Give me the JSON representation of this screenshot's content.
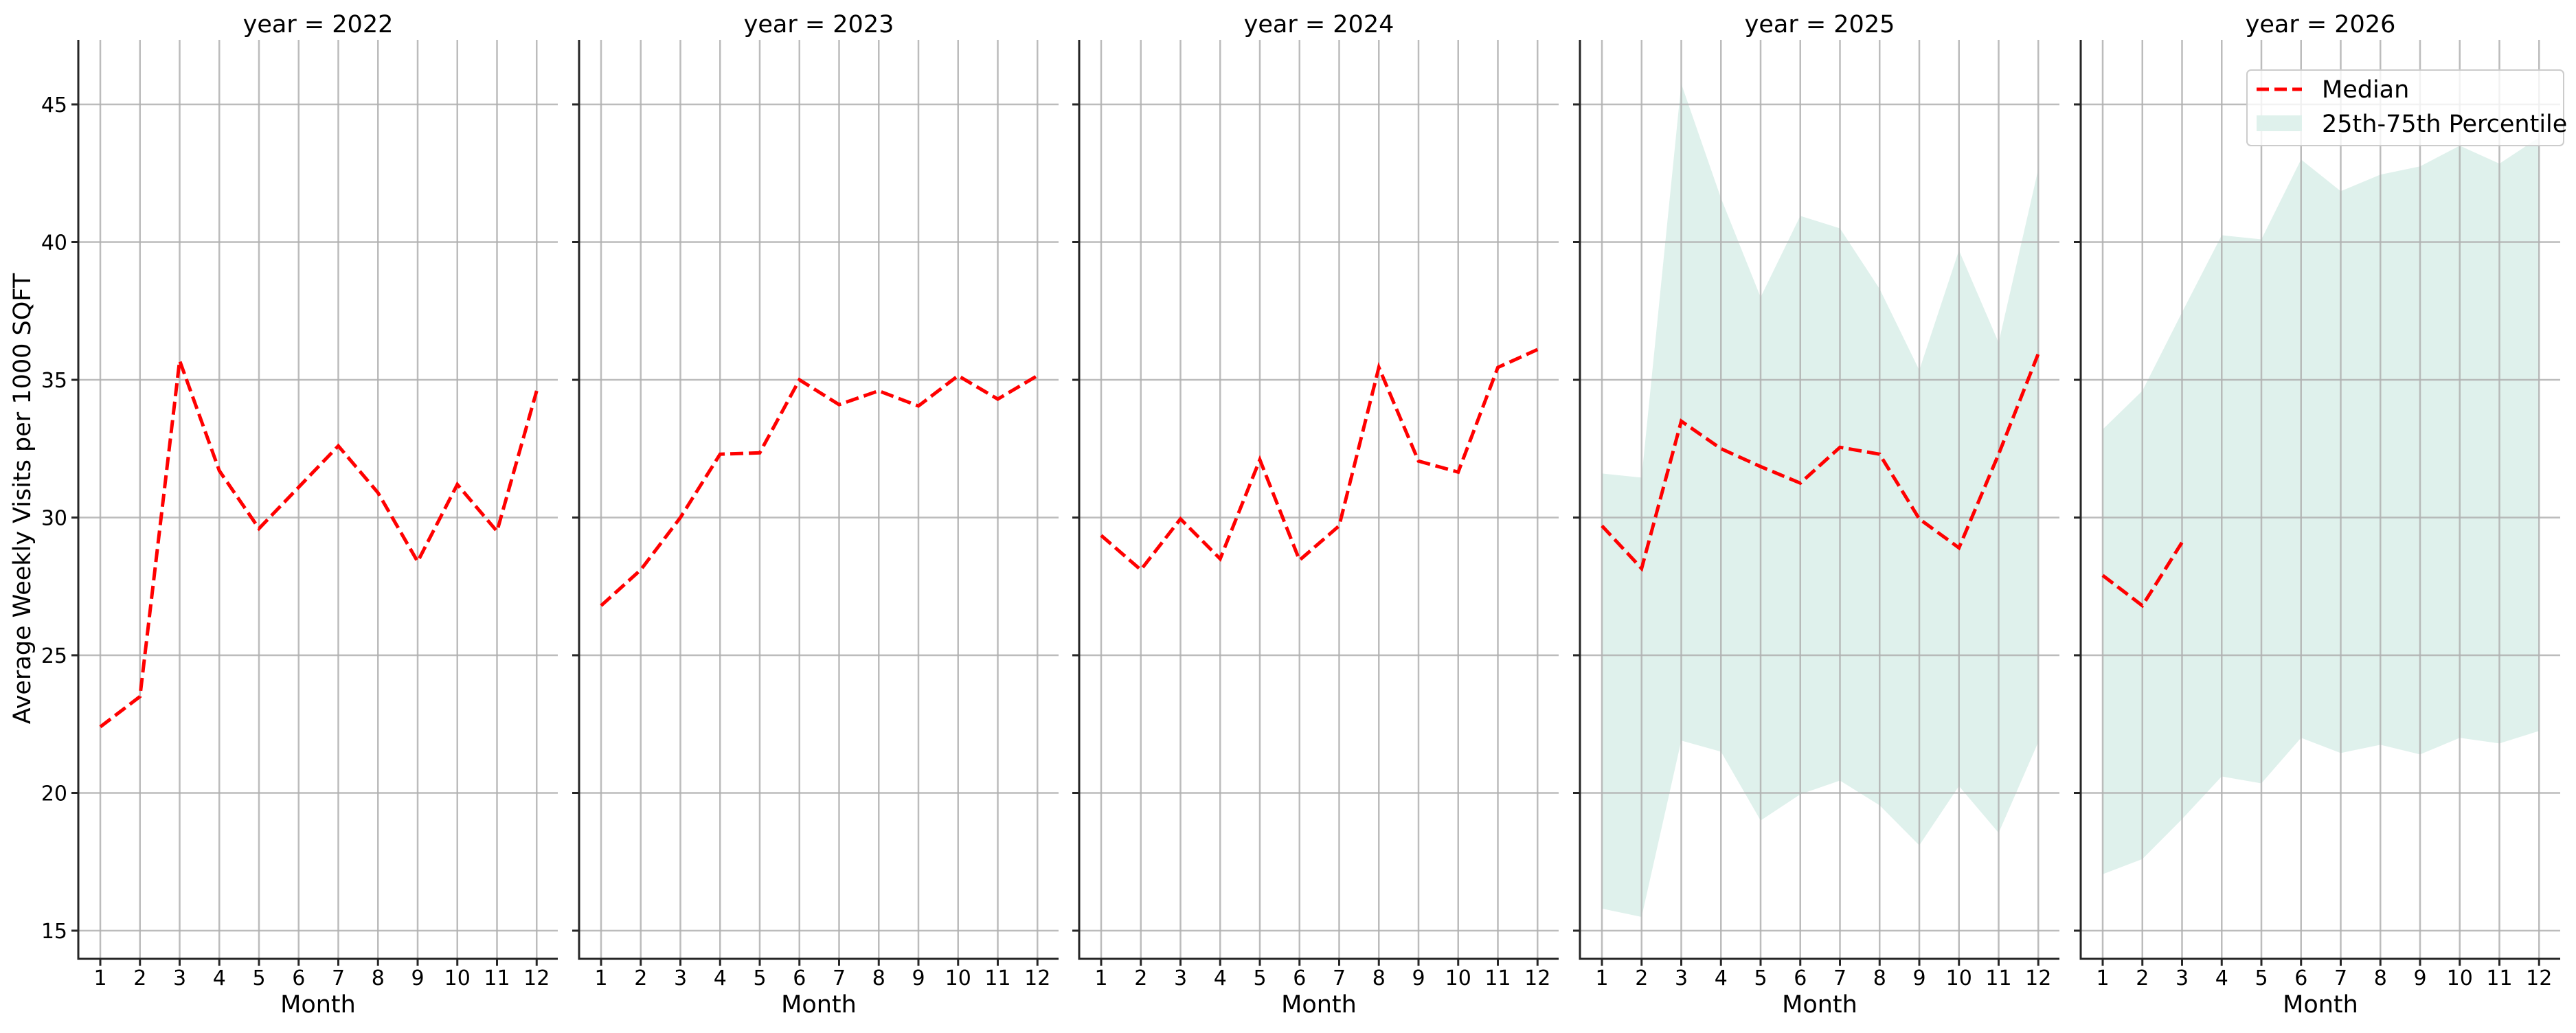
{
  "chart_data": {
    "type": "line",
    "layout": "facet-grid (1 row x 5 columns, shared y-axis)",
    "ylabel": "Average Weekly Visits per 1000 SQFT",
    "xlabel": "Month",
    "ylim": [
      13.9,
      47.5
    ],
    "yticks": [
      15,
      20,
      25,
      30,
      35,
      40,
      45
    ],
    "xticks": [
      1,
      2,
      3,
      4,
      5,
      6,
      7,
      8,
      9,
      10,
      11,
      12
    ],
    "grid": true,
    "legend": {
      "position": "upper right (last panel)",
      "entries": [
        {
          "label": "Median",
          "style": "red dashed line"
        },
        {
          "label": "25th-75th Percentile",
          "style": "light teal shaded band"
        }
      ]
    },
    "colors": {
      "median": "#ff0000",
      "band": "#dff1ec",
      "grid": "#b0b0b0",
      "axis": "#262626"
    },
    "panels": [
      {
        "title": "year = 2022",
        "x": [
          1,
          2,
          3,
          4,
          5,
          6,
          7,
          8,
          9,
          10,
          11,
          12
        ],
        "median": [
          22.4,
          23.5,
          35.7,
          31.7,
          29.6,
          31.1,
          32.6,
          30.9,
          28.4,
          31.2,
          29.5,
          34.6
        ],
        "p25": null,
        "p75": null
      },
      {
        "title": "year = 2023",
        "x": [
          1,
          2,
          3,
          4,
          5,
          6,
          7,
          8,
          9,
          10,
          11,
          12
        ],
        "median": [
          26.8,
          28.1,
          30.0,
          32.3,
          32.35,
          35.0,
          34.1,
          34.6,
          34.05,
          35.15,
          34.3,
          35.15
        ],
        "p25": null,
        "p75": null
      },
      {
        "title": "year = 2024",
        "x": [
          1,
          2,
          3,
          4,
          5,
          6,
          7,
          8,
          9,
          10,
          11,
          12
        ],
        "median": [
          29.35,
          28.1,
          29.95,
          28.5,
          32.1,
          28.45,
          29.7,
          35.45,
          32.05,
          31.65,
          35.45,
          36.1
        ],
        "p25": null,
        "p75": null
      },
      {
        "title": "year = 2025",
        "x": [
          1,
          2,
          3,
          4,
          5,
          6,
          7,
          8,
          9,
          10,
          11,
          12
        ],
        "median": [
          29.7,
          28.15,
          33.5,
          32.5,
          31.85,
          31.25,
          32.55,
          32.3,
          29.95,
          28.9,
          32.3,
          35.95
        ],
        "p25": [
          15.8,
          15.5,
          21.9,
          21.5,
          19.0,
          19.95,
          20.45,
          19.55,
          18.1,
          20.25,
          18.55,
          21.85
        ],
        "p75": [
          31.6,
          31.45,
          45.75,
          41.6,
          38.0,
          40.95,
          40.5,
          38.3,
          35.35,
          39.7,
          36.35,
          42.65
        ]
      },
      {
        "title": "year = 2026",
        "x": [
          1,
          2,
          3
        ],
        "median": [
          27.9,
          26.8,
          29.1
        ],
        "band_x": [
          1,
          2,
          3,
          4,
          5,
          6,
          7,
          8,
          9,
          10,
          11,
          12
        ],
        "p25": [
          17.05,
          17.6,
          19.05,
          20.6,
          20.35,
          22.0,
          21.45,
          21.75,
          21.4,
          22.0,
          21.8,
          22.25
        ],
        "p75": [
          33.2,
          34.6,
          37.45,
          40.25,
          40.1,
          43.0,
          41.85,
          42.45,
          42.75,
          43.5,
          42.85,
          43.8
        ]
      }
    ]
  },
  "labels": {
    "ylabel": "Average Weekly Visits per 1000 SQFT",
    "xlabel": "Month",
    "legend_median": "Median",
    "legend_band": "25th-75th Percentile"
  }
}
